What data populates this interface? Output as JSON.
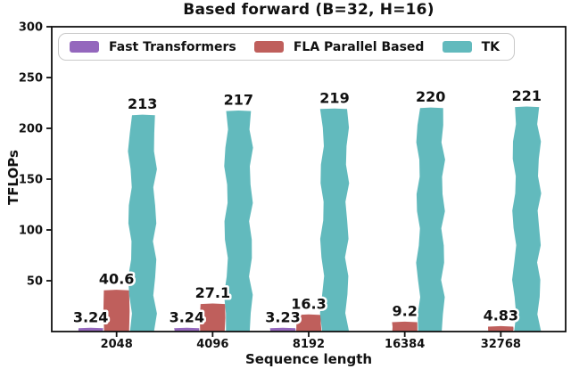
{
  "chart_data": {
    "type": "bar",
    "title": "Based forward (B=32, H=16)",
    "xlabel": "Sequence length",
    "ylabel": "TFLOPs",
    "categories": [
      "2048",
      "4096",
      "8192",
      "16384",
      "32768"
    ],
    "series": [
      {
        "name": "Fast Transformers",
        "color": "#9467bd",
        "values": [
          3.24,
          3.24,
          3.23,
          null,
          null
        ],
        "value_labels": [
          "3.24",
          "3.24",
          "3.23",
          "",
          ""
        ]
      },
      {
        "name": "FLA Parallel Based",
        "color": "#bf5f5c",
        "values": [
          40.6,
          27.1,
          16.3,
          9.2,
          4.83
        ],
        "value_labels": [
          "40.6",
          "27.1",
          "16.3",
          "9.2",
          "4.83"
        ]
      },
      {
        "name": "TK",
        "color": "#62babd",
        "values": [
          213,
          217,
          219,
          220,
          221
        ],
        "value_labels": [
          "213",
          "217",
          "219",
          "220",
          "221"
        ]
      }
    ],
    "ylim": [
      0,
      300
    ],
    "yticks": [
      50,
      100,
      150,
      200,
      250,
      300
    ],
    "legend_position": "upper center",
    "grid": false,
    "style": "xkcd-hand-drawn"
  }
}
